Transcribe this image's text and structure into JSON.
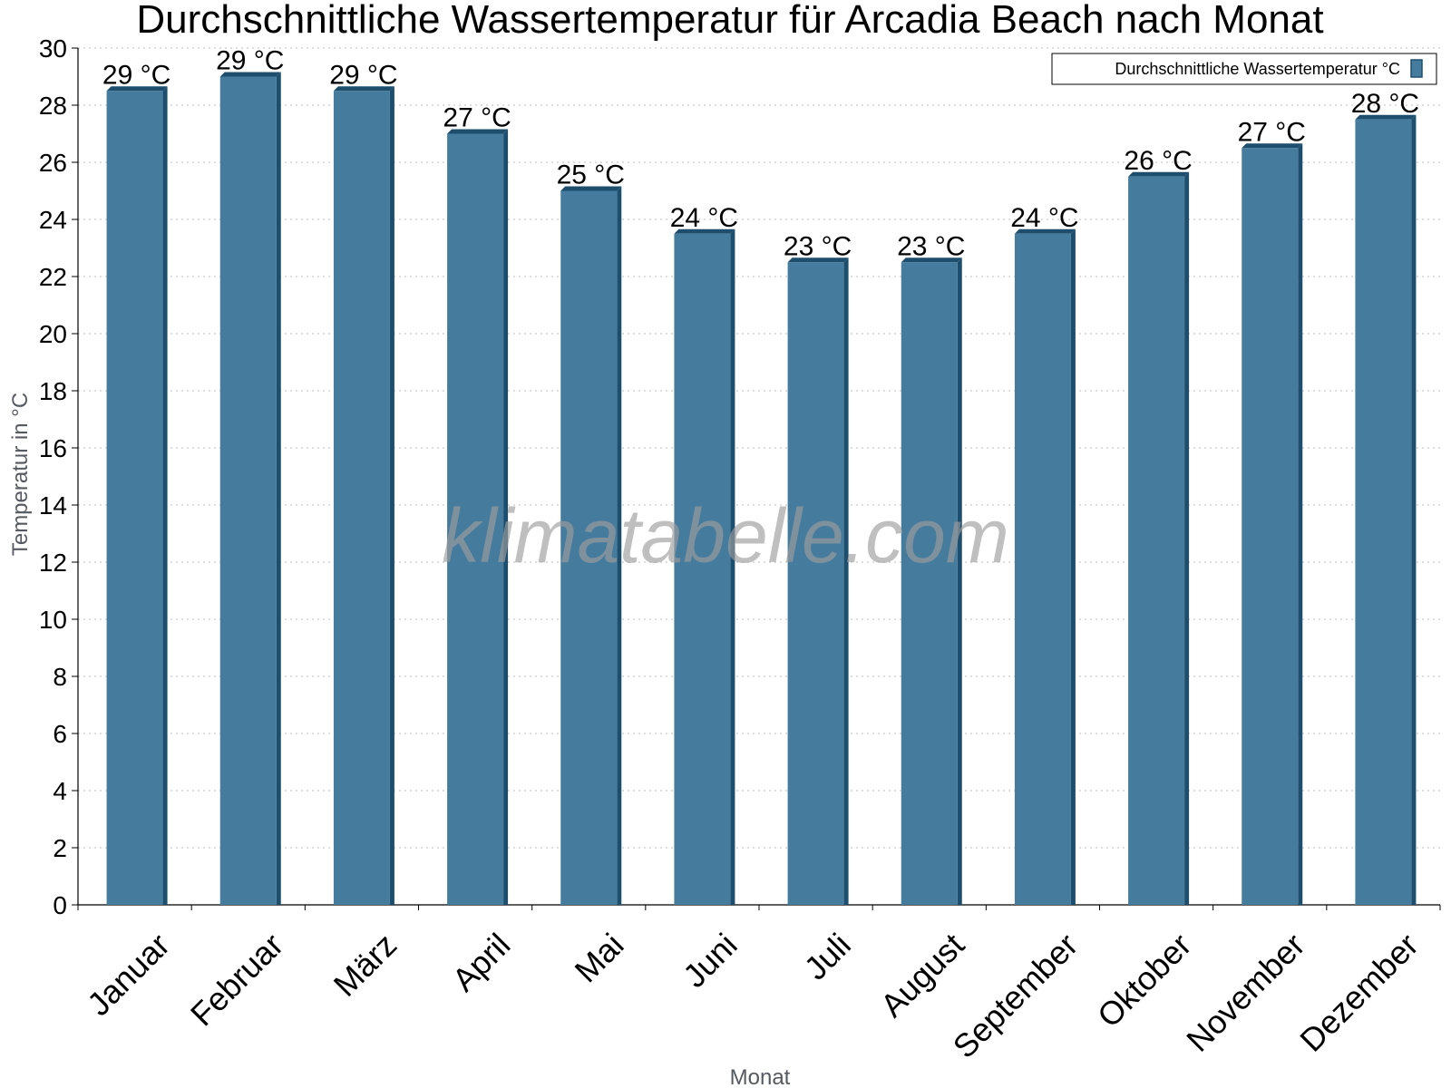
{
  "chart_data": {
    "type": "bar",
    "title": "Durchschnittliche Wassertemperatur für Arcadia Beach nach Monat",
    "xlabel": "Monat",
    "ylabel": "Temperatur in °C",
    "ylim": [
      0,
      30
    ],
    "yticks": [
      0,
      2,
      4,
      6,
      8,
      10,
      12,
      14,
      16,
      18,
      20,
      22,
      24,
      26,
      28,
      30
    ],
    "grid": true,
    "legend_position": "top-right",
    "categories": [
      "Januar",
      "Februar",
      "März",
      "April",
      "Mai",
      "Juni",
      "Juli",
      "August",
      "September",
      "Oktober",
      "November",
      "Dezember"
    ],
    "series": [
      {
        "name": "Durchschnittliche Wassertemperatur °C",
        "values": [
          28.5,
          29.0,
          28.5,
          27.0,
          25.0,
          23.5,
          22.5,
          22.5,
          23.5,
          25.5,
          26.5,
          27.5
        ],
        "labels": [
          "29 °C",
          "29 °C",
          "29 °C",
          "27 °C",
          "25 °C",
          "24 °C",
          "23 °C",
          "23 °C",
          "24 °C",
          "26 °C",
          "27 °C",
          "28 °C"
        ],
        "color": "#457b9d",
        "edge_color": "#1d4e6e"
      }
    ]
  },
  "watermark": "klimatabelle.com"
}
